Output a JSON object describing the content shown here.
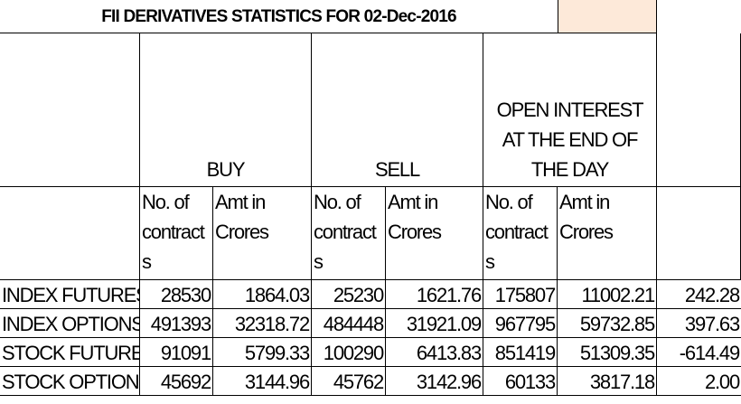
{
  "title": "FII DERIVATIVES STATISTICS FOR 02-Dec-2016",
  "table": {
    "groups": [
      "BUY",
      "SELL",
      "OPEN INTEREST AT THE END OF THE DAY"
    ],
    "subheaders": [
      "No. of contracts",
      "Amt in Crores",
      "No. of contracts",
      "Amt in Crores",
      "No. of contracts",
      "Amt in Crores"
    ],
    "rows": [
      [
        "INDEX FUTURES",
        "28530",
        "1864.03",
        "25230",
        "1621.76",
        "175807",
        "11002.21",
        "242.28"
      ],
      [
        "INDEX OPTIONS",
        "491393",
        "32318.72",
        "484448",
        "31921.09",
        "967795",
        "59732.85",
        "397.63"
      ],
      [
        "STOCK FUTURES",
        "91091",
        "5799.33",
        "100290",
        "6413.83",
        "851419",
        "51309.35",
        "-614.49"
      ],
      [
        "STOCK OPTIONS",
        "45692",
        "3144.96",
        "45762",
        "3142.96",
        "60133",
        "3817.18",
        "2.00"
      ]
    ]
  }
}
